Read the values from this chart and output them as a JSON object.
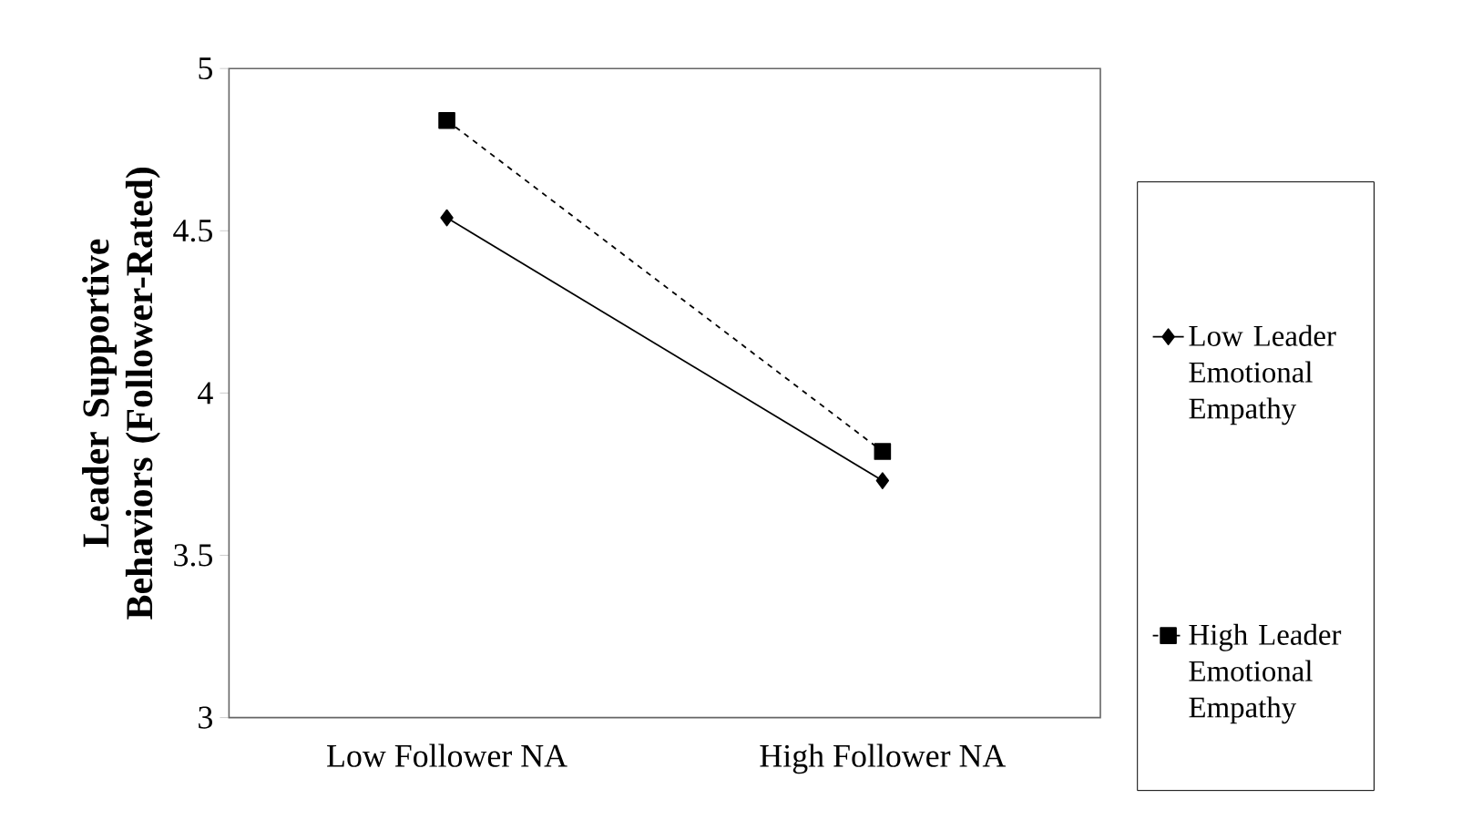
{
  "chart_data": {
    "type": "line",
    "ylabel": "Leader Supportive Behaviors (Follower-Rated)",
    "categories": [
      "Low Follower NA",
      "High Follower NA"
    ],
    "series": [
      {
        "name": "Low Leader Emotional Empathy",
        "color": "#000000",
        "values": [
          4.54,
          3.73
        ],
        "marker": "diamond",
        "line_style": "solid"
      },
      {
        "name": "High Leader Emotional Empathy",
        "color": "#000000",
        "values": [
          4.84,
          3.82
        ],
        "marker": "square",
        "line_style": "dashed"
      }
    ],
    "ylim": [
      3,
      5
    ],
    "yticks": [
      3,
      3.5,
      4,
      4.5,
      5
    ],
    "grid": false,
    "legend": "right"
  }
}
